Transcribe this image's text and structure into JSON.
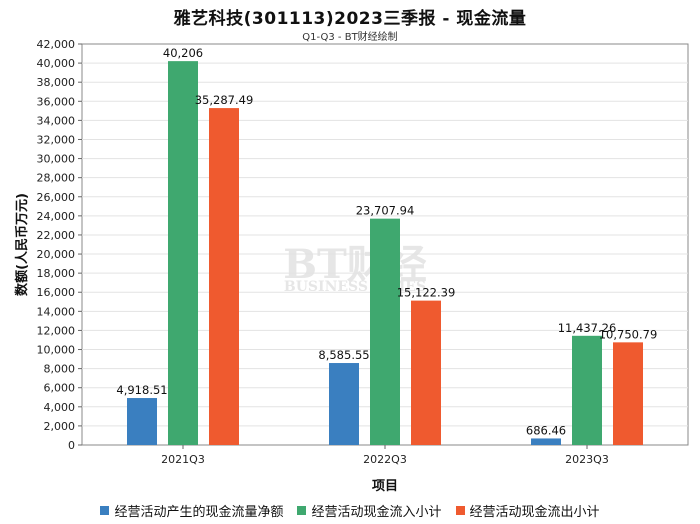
{
  "title": "雅艺科技(301113)2023三季报 - 现金流量",
  "subtitle": "Q1-Q3 - BT财经绘制",
  "watermark": {
    "main": "BT财经",
    "sub": "BUSINESS TIMES"
  },
  "chart_data": {
    "type": "bar",
    "xlabel": "项目",
    "ylabel": "数额(人民币万元)",
    "ylim": [
      0,
      42000
    ],
    "ytick_step": 2000,
    "grid": true,
    "legend_position": "bottom",
    "categories": [
      "2021Q3",
      "2022Q3",
      "2023Q3"
    ],
    "series": [
      {
        "name": "经营活动产生的现金流量净额",
        "color": "#3a7fc0",
        "values": [
          4918.51,
          8585.55,
          686.46
        ],
        "labels": [
          "4,918.51",
          "8,585.55",
          "686.46"
        ]
      },
      {
        "name": "经营活动现金流入小计",
        "color": "#3fa86f",
        "values": [
          40206,
          23707.94,
          11437.26
        ],
        "labels": [
          "40,206",
          "23,707.94",
          "11,437.26"
        ]
      },
      {
        "name": "经营活动现金流出小计",
        "color": "#ef5a2f",
        "values": [
          35287.49,
          15122.39,
          10750.79
        ],
        "labels": [
          "35,287.49",
          "15,122.39",
          "10,750.79"
        ]
      }
    ]
  }
}
